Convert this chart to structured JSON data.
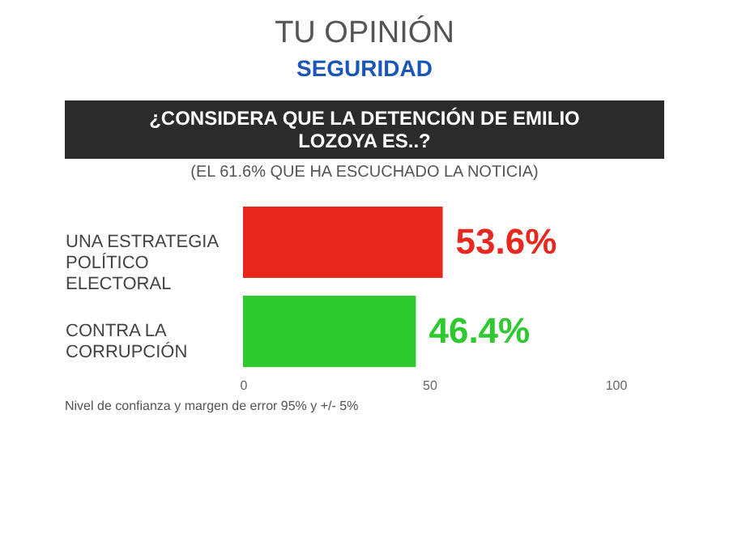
{
  "chart_data": {
    "type": "bar",
    "orientation": "horizontal",
    "title": "TU OPINIÓN",
    "subtitle": "SEGURIDAD",
    "annotations": [
      "¿CONSIDERA QUE LA DETENCIÓN DE EMILIO LOZOYA ES..?",
      "(EL 61.6% QUE HA ESCUCHADO LA NOTICIA)",
      "Nivel de confianza y margen de error 95% y +/- 5%"
    ],
    "categories": [
      "UNA ESTRATEGIA POLÍTICO ELECTORAL",
      "CONTRA LA CORRUPCIÓN"
    ],
    "values": [
      53.6,
      46.4
    ],
    "colors": [
      "#e8281e",
      "#2ec92e"
    ],
    "value_labels": [
      "53.6%",
      "46.4%"
    ],
    "xlim": [
      0,
      100
    ],
    "xticks": [
      0,
      50,
      100
    ],
    "grid": false
  }
}
